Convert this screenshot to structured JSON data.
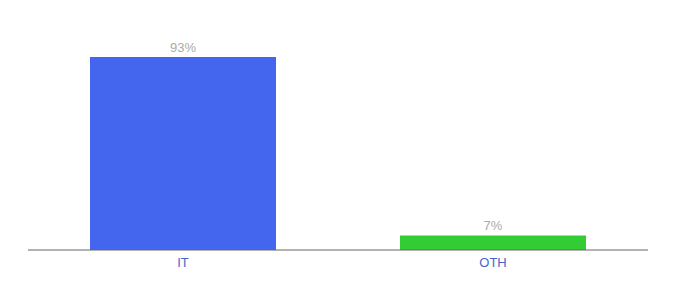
{
  "chart_data": {
    "type": "bar",
    "categories": [
      "IT",
      "OTH"
    ],
    "values": [
      93,
      7
    ],
    "value_labels": [
      "93%",
      "7%"
    ],
    "colors": [
      "#4466ee",
      "#33cc33"
    ],
    "ylim": [
      0,
      105
    ],
    "data_labels": true,
    "tick_labels": "x",
    "grid": false
  }
}
